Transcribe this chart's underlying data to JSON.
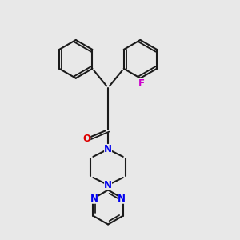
{
  "background_color": "#e8e8e8",
  "bond_color": "#1a1a1a",
  "nitrogen_color": "#0000ee",
  "oxygen_color": "#dd0000",
  "fluorine_color": "#cc00cc",
  "line_width": 1.5,
  "font_size_atom": 8.5,
  "fig_size": [
    3.0,
    3.0
  ],
  "dpi": 100,
  "xlim": [
    0,
    10
  ],
  "ylim": [
    0,
    10
  ]
}
